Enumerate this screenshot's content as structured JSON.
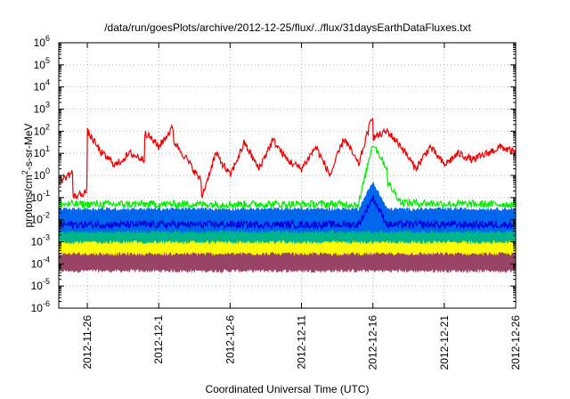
{
  "chart_data": {
    "type": "line",
    "title": "/data/run/goesPlots/archive/2012-12-25/flux/../flux/31daysEarthDataFluxes.txt",
    "xlabel": "Coordinated Universal Time (UTC)",
    "ylabel_parts": {
      "pre": "protons/cm",
      "sup": "2",
      "post": "-s-sr-MeV"
    },
    "y_scale": "log",
    "ylim": [
      1e-06,
      1000000.0
    ],
    "y_ticks": [
      {
        "base": "10",
        "exp": "-6",
        "value": 1e-06
      },
      {
        "base": "10",
        "exp": "-5",
        "value": 1e-05
      },
      {
        "base": "10",
        "exp": "-4",
        "value": 0.0001
      },
      {
        "base": "10",
        "exp": "-3",
        "value": 0.001
      },
      {
        "base": "10",
        "exp": "-2",
        "value": 0.01
      },
      {
        "base": "10",
        "exp": "-1",
        "value": 0.1
      },
      {
        "base": "10",
        "exp": "0",
        "value": 1
      },
      {
        "base": "10",
        "exp": "1",
        "value": 10
      },
      {
        "base": "10",
        "exp": "2",
        "value": 100
      },
      {
        "base": "10",
        "exp": "3",
        "value": 1000
      },
      {
        "base": "10",
        "exp": "4",
        "value": 10000
      },
      {
        "base": "10",
        "exp": "5",
        "value": 100000
      },
      {
        "base": "10",
        "exp": "6",
        "value": 1000000
      }
    ],
    "xlim": [
      "2012-11-24",
      "2012-12-26"
    ],
    "x_ticks": [
      "2012-11-26",
      "2012-12-1",
      "2012-12-6",
      "2012-12-11",
      "2012-12-16",
      "2012-12-21",
      "2012-12-26"
    ],
    "x_tick_dates": [
      "2012-11-26",
      "2012-12-01",
      "2012-12-06",
      "2012-12-11",
      "2012-12-16",
      "2012-12-21",
      "2012-12-26"
    ],
    "grid": "dotted",
    "series": [
      {
        "color": "#994466",
        "style": "band",
        "x": [
          "2012-11-24",
          "2012-12-01",
          "2012-12-08",
          "2012-12-15",
          "2012-12-22",
          "2012-12-26"
        ],
        "low": [
          5e-05,
          5e-05,
          5e-05,
          5e-05,
          5e-05,
          5e-05
        ],
        "high": [
          0.0004,
          0.0004,
          0.0004,
          0.0004,
          0.0004,
          0.0004
        ]
      },
      {
        "color": "#ffff00",
        "style": "band",
        "x": [
          "2012-11-24",
          "2012-12-01",
          "2012-12-08",
          "2012-12-15",
          "2012-12-22",
          "2012-12-26"
        ],
        "low": [
          0.0003,
          0.0003,
          0.0003,
          0.0003,
          0.0003,
          0.0003
        ],
        "high": [
          0.0012,
          0.0012,
          0.0012,
          0.0012,
          0.0012,
          0.0012
        ]
      },
      {
        "color": "#00b48c",
        "style": "band",
        "x": [
          "2012-11-24",
          "2012-12-01",
          "2012-12-08",
          "2012-12-15",
          "2012-12-22",
          "2012-12-26"
        ],
        "low": [
          0.001,
          0.001,
          0.001,
          0.001,
          0.001,
          0.001
        ],
        "high": [
          0.004,
          0.004,
          0.004,
          0.004,
          0.004,
          0.004
        ]
      },
      {
        "color": "#0066ee",
        "style": "band",
        "x": [
          "2012-11-24",
          "2012-12-01",
          "2012-12-08",
          "2012-12-15",
          "2012-12-16",
          "2012-12-17",
          "2012-12-22",
          "2012-12-26"
        ],
        "low": [
          0.003,
          0.003,
          0.003,
          0.003,
          0.003,
          0.003,
          0.003,
          0.003
        ],
        "high": [
          0.03,
          0.03,
          0.03,
          0.03,
          0.5,
          0.03,
          0.03,
          0.03
        ]
      },
      {
        "color": "#0000dd",
        "style": "line",
        "x": [
          "2012-11-24",
          "2012-12-01",
          "2012-12-08",
          "2012-12-15",
          "2012-12-16",
          "2012-12-17",
          "2012-12-22",
          "2012-12-26"
        ],
        "y": [
          0.006,
          0.006,
          0.006,
          0.006,
          0.1,
          0.006,
          0.006,
          0.006
        ]
      },
      {
        "color": "#00ee00",
        "style": "line",
        "x": [
          "2012-11-24",
          "2012-12-01",
          "2012-12-08",
          "2012-12-15",
          "2012-12-16",
          "2012-12-17",
          "2012-12-17",
          "2012-12-18",
          "2012-12-22",
          "2012-12-26"
        ],
        "y": [
          0.05,
          0.05,
          0.05,
          0.05,
          30,
          2,
          0.5,
          0.06,
          0.05,
          0.05
        ]
      },
      {
        "color": "#ee0000",
        "style": "line",
        "x": [
          "2012-11-24",
          "2012-11-25",
          "2012-11-25",
          "2012-11-26",
          "2012-11-26",
          "2012-11-27",
          "2012-11-28",
          "2012-11-29",
          "2012-11-30",
          "2012-11-30",
          "2012-12-01",
          "2012-12-02",
          "2012-12-02",
          "2012-12-03",
          "2012-12-04",
          "2012-12-04",
          "2012-12-05",
          "2012-12-06",
          "2012-12-07",
          "2012-12-08",
          "2012-12-09",
          "2012-12-10",
          "2012-12-11",
          "2012-12-12",
          "2012-12-13",
          "2012-12-14",
          "2012-12-15",
          "2012-12-16",
          "2012-12-16",
          "2012-12-17",
          "2012-12-18",
          "2012-12-19",
          "2012-12-20",
          "2012-12-21",
          "2012-12-22",
          "2012-12-23",
          "2012-12-24",
          "2012-12-25",
          "2012-12-26"
        ],
        "y": [
          0.5,
          1.5,
          0.1,
          0.2,
          100,
          10,
          3,
          10,
          5,
          100,
          20,
          150,
          40,
          5,
          0.5,
          0.1,
          10,
          1,
          30,
          2,
          40,
          5,
          2,
          20,
          1,
          50,
          3,
          600,
          50,
          100,
          20,
          2,
          20,
          3,
          10,
          5,
          10,
          20,
          10
        ]
      }
    ]
  }
}
